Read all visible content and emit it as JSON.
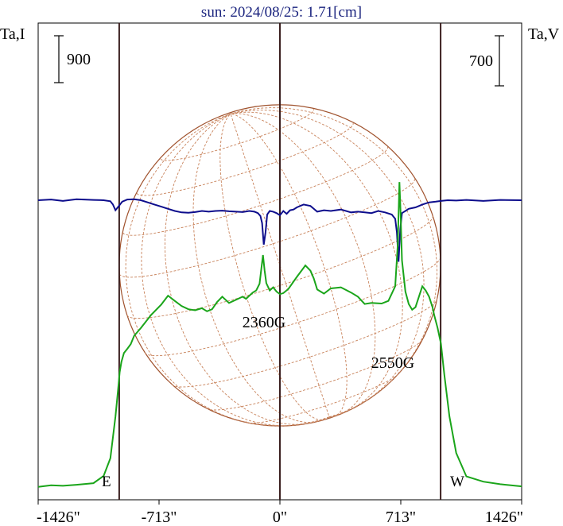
{
  "title": "sun: 2024/08/25: 1.71[cm]",
  "left_axis_label": "Ta,I",
  "right_axis_label": "Ta,V",
  "scale_bars": {
    "left": "900",
    "right": "700"
  },
  "limb_labels": {
    "east": "E",
    "west": "W"
  },
  "colors": {
    "stokes_i": "#1aa51a",
    "stokes_v": "#0d0d8c",
    "disk": "#a0522d",
    "grid": "#c8825a",
    "vline": "#3b1f1f"
  },
  "chart_data": {
    "type": "line",
    "title": "sun: 2024/08/25: 1.71[cm]",
    "xlabel": "",
    "ylabel": "Ta,I",
    "y2label": "Ta,V",
    "xlim": [
      -1426,
      1426
    ],
    "x_ticks": [
      {
        "value": -1426,
        "label": "-1426\""
      },
      {
        "value": -713,
        "label": "-713\""
      },
      {
        "value": 0,
        "label": "0\""
      },
      {
        "value": 713,
        "label": "713\""
      },
      {
        "value": 1426,
        "label": "1426\""
      }
    ],
    "solar_limb_arcsec": 948,
    "reference_lines_arcsec": [
      -948,
      0,
      948
    ],
    "grid": false,
    "annotations": [
      {
        "text": "2360G",
        "x": -90
      },
      {
        "text": "2550G",
        "x": 705
      }
    ],
    "series": [
      {
        "name": "I",
        "axis": "left",
        "x": [
          -1426,
          -1350,
          -1280,
          -1200,
          -1100,
          -1040,
          -1000,
          -970,
          -955,
          -945,
          -935,
          -920,
          -900,
          -880,
          -860,
          -820,
          -760,
          -700,
          -660,
          -620,
          -580,
          -540,
          -500,
          -460,
          -430,
          -400,
          -370,
          -340,
          -300,
          -260,
          -220,
          -200,
          -180,
          -160,
          -140,
          -120,
          -100,
          -90,
          -80,
          -60,
          -40,
          -20,
          0,
          20,
          50,
          100,
          150,
          180,
          200,
          220,
          260,
          300,
          360,
          420,
          460,
          500,
          540,
          600,
          640,
          680,
          695,
          705,
          712,
          720,
          740,
          760,
          780,
          800,
          820,
          840,
          860,
          880,
          900,
          910,
          930,
          950,
          970,
          1000,
          1040,
          1100,
          1200,
          1300,
          1426
        ],
        "y": [
          50,
          80,
          70,
          90,
          120,
          260,
          600,
          1400,
          1900,
          2250,
          2450,
          2620,
          2700,
          2790,
          2950,
          3100,
          3350,
          3550,
          3720,
          3620,
          3520,
          3460,
          3440,
          3480,
          3420,
          3460,
          3600,
          3700,
          3580,
          3640,
          3700,
          3660,
          3720,
          3780,
          3820,
          3950,
          4500,
          4200,
          3960,
          3820,
          3880,
          3800,
          3750,
          3770,
          3850,
          4080,
          4300,
          4200,
          4050,
          3840,
          3760,
          3860,
          3880,
          3780,
          3700,
          3560,
          3580,
          3570,
          3620,
          3900,
          4700,
          5900,
          5300,
          4400,
          3800,
          3560,
          3450,
          3500,
          3700,
          3900,
          3820,
          3700,
          3500,
          3350,
          3100,
          2800,
          2200,
          1400,
          700,
          250,
          150,
          100,
          60
        ]
      },
      {
        "name": "V",
        "axis": "right",
        "x": [
          -1426,
          -1350,
          -1280,
          -1200,
          -1100,
          -1040,
          -1000,
          -985,
          -970,
          -950,
          -930,
          -900,
          -860,
          -820,
          -780,
          -740,
          -700,
          -660,
          -620,
          -580,
          -540,
          -500,
          -460,
          -420,
          -380,
          -340,
          -300,
          -260,
          -220,
          -180,
          -150,
          -130,
          -115,
          -105,
          -95,
          -85,
          -75,
          -60,
          -40,
          -20,
          0,
          20,
          40,
          60,
          80,
          100,
          140,
          180,
          200,
          220,
          260,
          300,
          360,
          420,
          460,
          500,
          540,
          580,
          620,
          660,
          680,
          690,
          700,
          710,
          720,
          740,
          760,
          780,
          800,
          840,
          880,
          920,
          950,
          990,
          1040,
          1100,
          1200,
          1300,
          1426
        ],
        "y": [
          0,
          10,
          -10,
          15,
          5,
          0,
          -15,
          -60,
          -140,
          -80,
          -20,
          10,
          15,
          0,
          -30,
          -60,
          -90,
          -120,
          -150,
          -170,
          -175,
          -165,
          -150,
          -160,
          -150,
          -145,
          -155,
          -160,
          -165,
          -150,
          -160,
          -180,
          -220,
          -320,
          -620,
          -450,
          -200,
          -150,
          -160,
          -180,
          -210,
          -150,
          -190,
          -140,
          -130,
          -100,
          -60,
          -80,
          -120,
          -160,
          -140,
          -150,
          -130,
          -170,
          -160,
          -170,
          -180,
          -150,
          -170,
          -200,
          -260,
          -450,
          -860,
          -400,
          -180,
          -150,
          -120,
          -110,
          -100,
          -60,
          -30,
          -20,
          -10,
          0,
          -5,
          5,
          -10,
          5,
          0
        ]
      }
    ]
  }
}
